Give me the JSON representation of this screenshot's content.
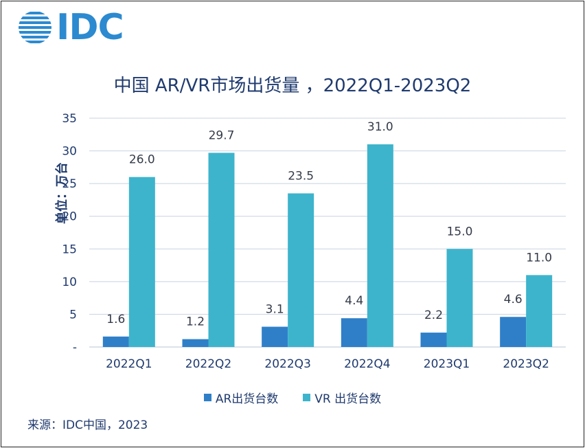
{
  "header": {
    "logo_text": "IDC",
    "logo_icon": "globe-stripes-icon"
  },
  "chart_data": {
    "type": "bar",
    "title": "中国 AR/VR市场出货量 ，2022Q1-2023Q2",
    "ylabel": "单位：万台",
    "xlabel": "",
    "categories": [
      "2022Q1",
      "2022Q2",
      "2022Q3",
      "2022Q4",
      "2023Q1",
      "2023Q2"
    ],
    "series": [
      {
        "name": "AR出货台数",
        "values": [
          1.6,
          1.2,
          3.1,
          4.4,
          2.2,
          4.6
        ],
        "color": "#2f7fc8"
      },
      {
        "name": "VR 出货台数",
        "values": [
          26.0,
          29.7,
          23.5,
          31.0,
          15.0,
          11.0
        ],
        "color": "#3db4cc"
      }
    ],
    "data_labels": [
      "1.6",
      "1.2",
      "3.1",
      "4.4",
      "2.2",
      "4.6",
      "26.0",
      "29.7",
      "23.5",
      "31.0",
      "15.0",
      "11.0"
    ],
    "ylim": [
      0,
      35
    ],
    "yticks": [
      "-",
      "5",
      "10",
      "15",
      "20",
      "25",
      "30",
      "35"
    ],
    "grid": true,
    "legend_position": "bottom"
  },
  "footer": {
    "source": "来源：IDC中国，2023"
  }
}
